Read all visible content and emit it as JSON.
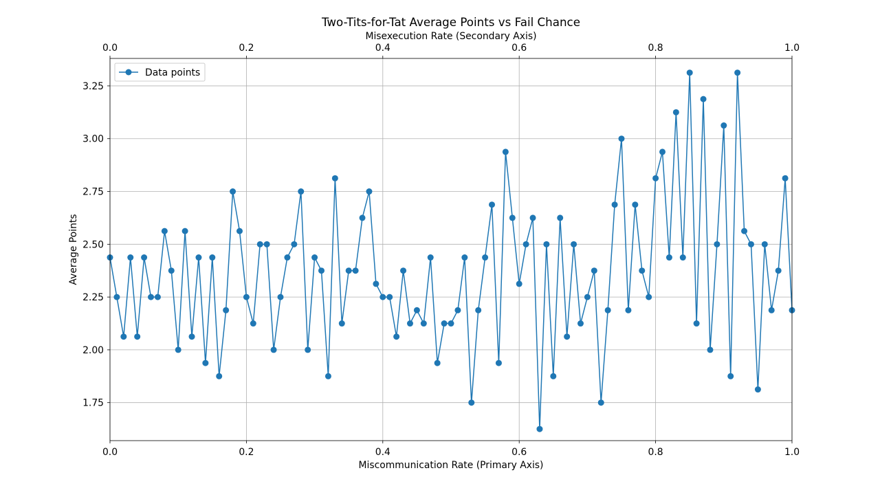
{
  "chart_data": {
    "type": "line",
    "title": "Two-Tits-for-Tat Average Points vs Fail Chance",
    "xlabel": "Miscommunication Rate (Primary Axis)",
    "x2label": "Misexecution Rate (Secondary Axis)",
    "ylabel": "Average Points",
    "xlim": [
      0,
      1
    ],
    "x2lim": [
      0,
      1
    ],
    "ylim": [
      1.57,
      3.38
    ],
    "x_ticks": [
      "0.0",
      "0.2",
      "0.4",
      "0.6",
      "0.8",
      "1.0"
    ],
    "x2_ticks": [
      "0.0",
      "0.2",
      "0.4",
      "0.6",
      "0.8",
      "1.0"
    ],
    "y_ticks": [
      "1.75",
      "2.00",
      "2.25",
      "2.50",
      "2.75",
      "3.00",
      "3.25"
    ],
    "grid": true,
    "legend_position": "top-left",
    "series": [
      {
        "name": "Data points",
        "color": "#1f77b4",
        "marker": "circle",
        "x": [
          0.0,
          0.01,
          0.02,
          0.03,
          0.04,
          0.05,
          0.06,
          0.07,
          0.08,
          0.09,
          0.1,
          0.11,
          0.12,
          0.13,
          0.14,
          0.15,
          0.16,
          0.17,
          0.18,
          0.19,
          0.2,
          0.21,
          0.22,
          0.23,
          0.24,
          0.25,
          0.26,
          0.27,
          0.28,
          0.29,
          0.3,
          0.31,
          0.32,
          0.33,
          0.34,
          0.35,
          0.36,
          0.37,
          0.38,
          0.39,
          0.4,
          0.41,
          0.42,
          0.43,
          0.44,
          0.45,
          0.46,
          0.47,
          0.48,
          0.49,
          0.5,
          0.51,
          0.52,
          0.53,
          0.54,
          0.55,
          0.56,
          0.57,
          0.58,
          0.59,
          0.6,
          0.61,
          0.62,
          0.63,
          0.64,
          0.65,
          0.66,
          0.67,
          0.68,
          0.69,
          0.7,
          0.71,
          0.72,
          0.73,
          0.74,
          0.75,
          0.76,
          0.77,
          0.78,
          0.79,
          0.8,
          0.81,
          0.82,
          0.83,
          0.84,
          0.85,
          0.86,
          0.87,
          0.88,
          0.89,
          0.9,
          0.91,
          0.92,
          0.93,
          0.94,
          0.95,
          0.96,
          0.97,
          0.98,
          0.99,
          1.0
        ],
        "y": [
          2.4375,
          2.25,
          2.0625,
          2.4375,
          2.0625,
          2.4375,
          2.25,
          2.25,
          2.5625,
          2.375,
          2.0,
          2.5625,
          2.0625,
          2.4375,
          1.9375,
          2.4375,
          1.875,
          2.1875,
          2.75,
          2.5625,
          2.25,
          2.125,
          2.5,
          2.5,
          2.0,
          2.25,
          2.4375,
          2.5,
          2.75,
          2.0,
          2.4375,
          2.375,
          1.875,
          2.8125,
          2.125,
          2.375,
          2.375,
          2.625,
          2.75,
          2.3125,
          2.25,
          2.25,
          2.0625,
          2.375,
          2.125,
          2.1875,
          2.125,
          2.4375,
          1.9375,
          2.125,
          2.125,
          2.1875,
          2.4375,
          1.75,
          2.1875,
          2.4375,
          2.6875,
          1.9375,
          2.9375,
          2.625,
          2.3125,
          2.5,
          2.625,
          1.625,
          2.5,
          1.875,
          2.625,
          2.0625,
          2.5,
          2.125,
          2.25,
          2.375,
          1.75,
          2.1875,
          2.6875,
          3.0,
          2.1875,
          2.6875,
          2.375,
          2.25,
          2.8125,
          2.9375,
          2.4375,
          3.125,
          2.4375,
          3.3125,
          2.125,
          3.1875,
          2.0,
          2.5,
          3.0625,
          1.875,
          3.3125,
          2.5625,
          2.5,
          1.8125,
          2.5,
          2.1875,
          2.375,
          2.8125,
          2.1875
        ]
      }
    ]
  }
}
